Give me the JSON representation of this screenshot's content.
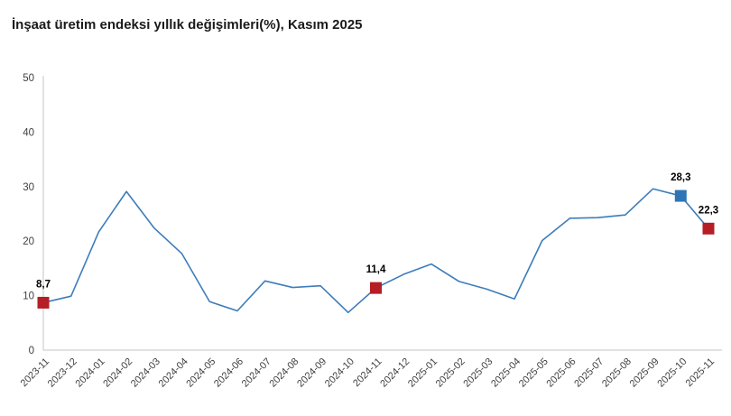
{
  "chart_data": {
    "type": "line",
    "title": "İnşaat üretim endeksi yıllık değişimleri(%), Kasım 2025",
    "xlabel": "",
    "ylabel": "",
    "ylim": [
      0,
      50
    ],
    "yticks": [
      0,
      10,
      20,
      30,
      40,
      50
    ],
    "grid": false,
    "legend_position": "none",
    "categories": [
      "2023-11",
      "2023-12",
      "2024-01",
      "2024-02",
      "2024-03",
      "2024-04",
      "2024-05",
      "2024-06",
      "2024-07",
      "2024-08",
      "2024-09",
      "2024-10",
      "2024-11",
      "2024-12",
      "2025-01",
      "2025-02",
      "2025-03",
      "2025-04",
      "2025-05",
      "2025-06",
      "2025-07",
      "2025-08",
      "2025-09",
      "2025-10",
      "2025-11"
    ],
    "values": [
      8.7,
      9.9,
      21.7,
      29.1,
      22.4,
      17.7,
      8.9,
      7.2,
      12.7,
      11.5,
      11.8,
      6.9,
      11.4,
      13.9,
      15.8,
      12.6,
      11.2,
      9.4,
      20.1,
      24.2,
      24.3,
      24.8,
      29.6,
      28.3,
      22.3
    ],
    "annotations": [
      {
        "category": "2023-11",
        "index": 0,
        "label": "8,7",
        "marker": "square",
        "color": "#b41e24"
      },
      {
        "category": "2024-11",
        "index": 12,
        "label": "11,4",
        "marker": "square",
        "color": "#b41e24"
      },
      {
        "category": "2025-10",
        "index": 23,
        "label": "28,3",
        "marker": "square",
        "color": "#2e75b6"
      },
      {
        "category": "2025-11",
        "index": 24,
        "label": "22,3",
        "marker": "square",
        "color": "#b41e24"
      }
    ],
    "colors": {
      "line": "#3c7dba",
      "axis": "#c6c6c6",
      "tick_text": "#404040",
      "data_label_text": "#000000"
    }
  }
}
